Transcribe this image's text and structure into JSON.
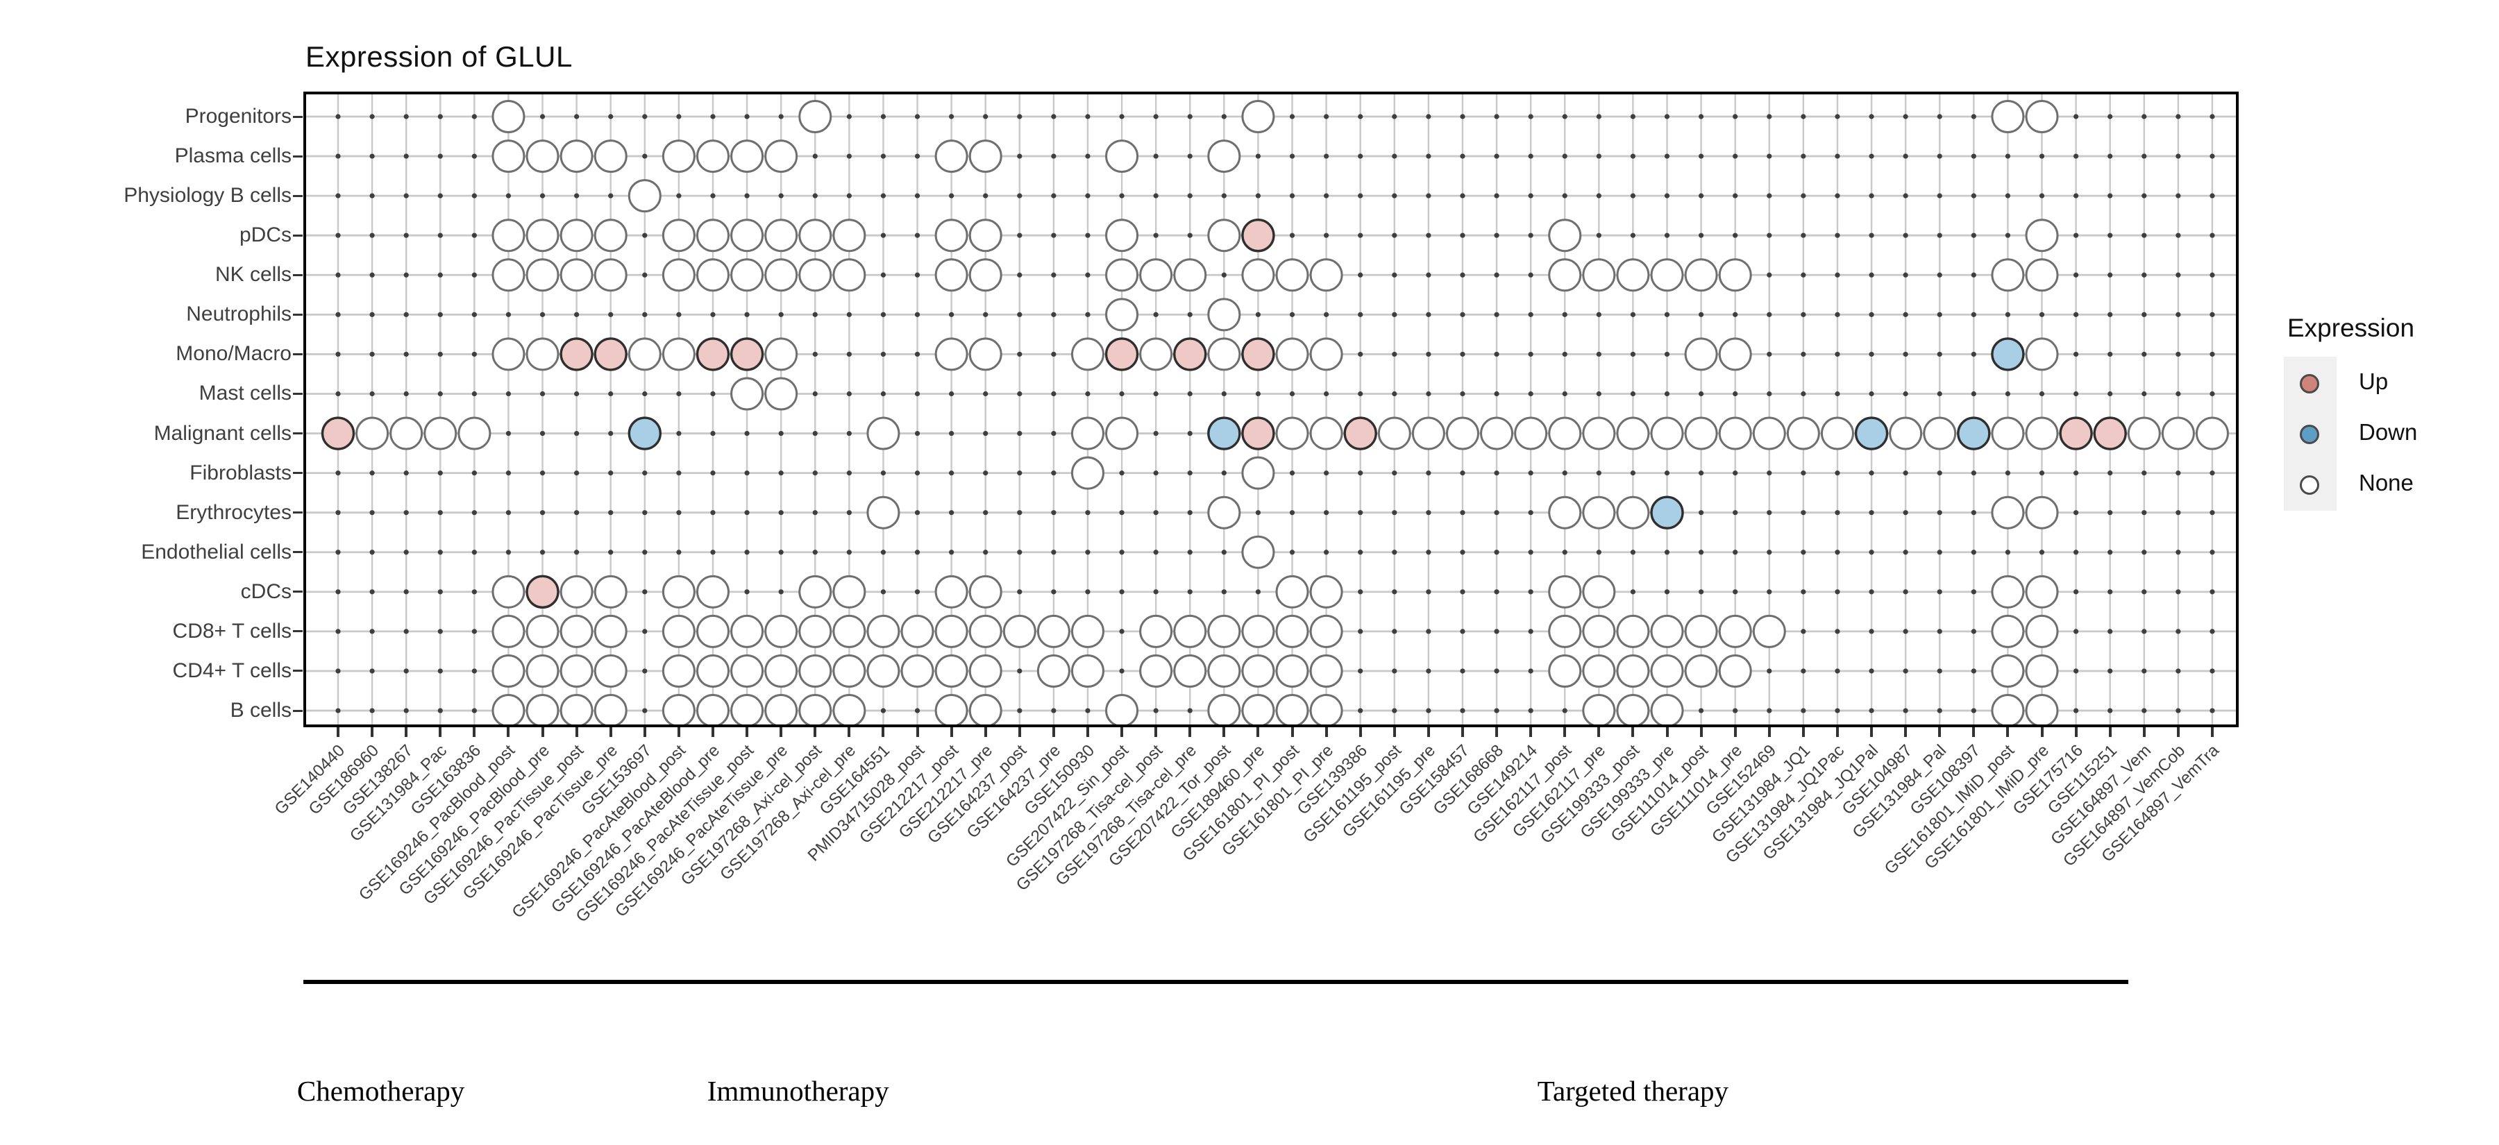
{
  "title": "Expression of GLUL",
  "legend": {
    "title": "Expression",
    "items": [
      {
        "label": "Up",
        "color": "#d0837b"
      },
      {
        "label": "Down",
        "color": "#5d9ec7"
      },
      {
        "label": "None",
        "color": "#ffffff"
      }
    ]
  },
  "colors": {
    "up_fill": "#efc9c5",
    "down_fill": "#a9cfe6",
    "none_fill": "#ffffff",
    "colored_stroke": "#2f2f2f",
    "none_stroke": "#6f6f6f",
    "gridline": "#c9c9c9",
    "grid_dot": "#3f3f3f",
    "panel_border": "#000000"
  },
  "chart_data": {
    "type": "heatmap",
    "subtype": "dot-matrix",
    "title": "Expression of GLUL",
    "legend_values": [
      "Up",
      "Down",
      "None"
    ],
    "rows": [
      "Progenitors",
      "Plasma cells",
      "Physiology B cells",
      "pDCs",
      "NK cells",
      "Neutrophils",
      "Mono/Macro",
      "Mast cells",
      "Malignant cells",
      "Fibroblasts",
      "Erythrocytes",
      "Endothelial cells",
      "cDCs",
      "CD8+ T cells",
      "CD4+ T cells",
      "B cells"
    ],
    "columns": [
      "GSE140440",
      "GSE186960",
      "GSE138267",
      "GSE131984_Pac",
      "GSE163836",
      "GSE169246_PacBlood_post",
      "GSE169246_PacBlood_pre",
      "GSE169246_PacTissue_post",
      "GSE169246_PacTissue_pre",
      "GSE153697",
      "GSE169246_PacAteBlood_post",
      "GSE169246_PacAteBlood_pre",
      "GSE169246_PacAteTissue_post",
      "GSE169246_PacAteTissue_pre",
      "GSE197268_Axi-cel_post",
      "GSE197268_Axi-cel_pre",
      "GSE164551",
      "PMID34715028_post",
      "GSE212217_post",
      "GSE212217_pre",
      "GSE164237_post",
      "GSE164237_pre",
      "GSE150930",
      "GSE207422_Sin_post",
      "GSE197268_Tisa-cel_post",
      "GSE197268_Tisa-cel_pre",
      "GSE207422_Tor_post",
      "GSE189460_pre",
      "GSE161801_PI_post",
      "GSE161801_PI_pre",
      "GSE139386",
      "GSE161195_post",
      "GSE161195_pre",
      "GSE158457",
      "GSE168668",
      "GSE149214",
      "GSE162117_post",
      "GSE162117_pre",
      "GSE199333_post",
      "GSE199333_pre",
      "GSE111014_post",
      "GSE111014_pre",
      "GSE152469",
      "GSE131984_JQ1",
      "GSE131984_JQ1Pac",
      "GSE131984_JQ1Pal",
      "GSE104987",
      "GSE131984_Pal",
      "GSE108397",
      "GSE161801_IMiD_post",
      "GSE161801_IMiD_pre",
      "GSE175716",
      "GSE115251",
      "GSE164897_Vem",
      "GSE164897_VemCob",
      "GSE164897_VemTra"
    ],
    "column_groups": [
      {
        "label": "Chemotherapy",
        "col_start": 1,
        "col_end": 4
      },
      {
        "label": "Immunotherapy",
        "col_start": 5,
        "col_end": 24
      },
      {
        "label": "Targeted therapy",
        "col_start": 25,
        "col_end": 53
      }
    ],
    "cells": [
      {
        "row": "Progenitors",
        "none": [
          6,
          15,
          28,
          50,
          51
        ],
        "up": [],
        "down": []
      },
      {
        "row": "Plasma cells",
        "none": [
          6,
          7,
          8,
          9,
          11,
          12,
          13,
          14,
          19,
          20,
          24,
          27
        ],
        "up": [],
        "down": []
      },
      {
        "row": "Physiology B cells",
        "none": [
          10
        ],
        "up": [],
        "down": []
      },
      {
        "row": "pDCs",
        "none": [
          6,
          7,
          8,
          9,
          11,
          12,
          13,
          14,
          15,
          16,
          19,
          20,
          24,
          27,
          37,
          51
        ],
        "up": [
          28
        ],
        "down": []
      },
      {
        "row": "NK cells",
        "none": [
          6,
          7,
          8,
          9,
          11,
          12,
          13,
          14,
          15,
          16,
          19,
          20,
          24,
          25,
          26,
          28,
          29,
          30,
          37,
          38,
          39,
          40,
          41,
          42,
          50,
          51
        ],
        "up": [],
        "down": []
      },
      {
        "row": "Neutrophils",
        "none": [
          24,
          27
        ],
        "up": [],
        "down": []
      },
      {
        "row": "Mono/Macro",
        "none": [
          6,
          7,
          10,
          11,
          14,
          19,
          20,
          23,
          25,
          27,
          29,
          30,
          41,
          42,
          51
        ],
        "up": [
          8,
          9,
          12,
          13,
          24,
          26,
          28
        ],
        "down": [
          50
        ]
      },
      {
        "row": "Mast cells",
        "none": [
          13,
          14
        ],
        "up": [],
        "down": []
      },
      {
        "row": "Malignant cells",
        "none": [
          2,
          3,
          4,
          5,
          17,
          23,
          24,
          29,
          30,
          32,
          33,
          34,
          35,
          36,
          37,
          38,
          39,
          40,
          41,
          42,
          43,
          44,
          45,
          47,
          48,
          50,
          51,
          54,
          55,
          56
        ],
        "up": [
          1,
          28,
          31,
          52,
          53
        ],
        "down": [
          10,
          27,
          46,
          49
        ]
      },
      {
        "row": "Fibroblasts",
        "none": [
          23,
          28
        ],
        "up": [],
        "down": []
      },
      {
        "row": "Erythrocytes",
        "none": [
          17,
          27,
          37,
          38,
          39,
          50,
          51
        ],
        "up": [],
        "down": [
          40
        ]
      },
      {
        "row": "Endothelial cells",
        "none": [
          28
        ],
        "up": [],
        "down": []
      },
      {
        "row": "cDCs",
        "none": [
          6,
          8,
          9,
          11,
          12,
          15,
          16,
          19,
          20,
          29,
          30,
          37,
          38,
          50,
          51
        ],
        "up": [
          7
        ],
        "down": []
      },
      {
        "row": "CD8+ T cells",
        "none": [
          6,
          7,
          8,
          9,
          11,
          12,
          13,
          14,
          15,
          16,
          17,
          18,
          19,
          20,
          21,
          22,
          23,
          25,
          26,
          27,
          28,
          29,
          30,
          37,
          38,
          39,
          40,
          41,
          42,
          43,
          50,
          51
        ],
        "up": [],
        "down": []
      },
      {
        "row": "CD4+ T cells",
        "none": [
          6,
          7,
          8,
          9,
          11,
          12,
          13,
          14,
          15,
          16,
          17,
          18,
          19,
          20,
          22,
          23,
          25,
          26,
          27,
          28,
          29,
          30,
          37,
          38,
          39,
          40,
          41,
          42,
          50,
          51
        ],
        "up": [],
        "down": []
      },
      {
        "row": "B cells",
        "none": [
          6,
          7,
          8,
          9,
          11,
          12,
          13,
          14,
          15,
          16,
          19,
          20,
          24,
          27,
          28,
          29,
          30,
          38,
          39,
          40,
          50,
          51
        ],
        "up": [],
        "down": []
      }
    ]
  }
}
